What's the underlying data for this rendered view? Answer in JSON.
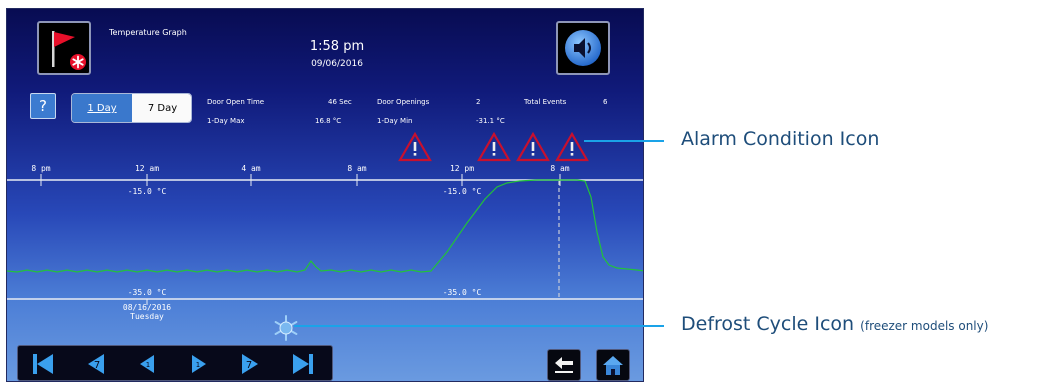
{
  "screen": {
    "title": "Temperature Graph",
    "time": "1:58 pm",
    "date": "09/06/2016"
  },
  "help_label": "?",
  "tabs": [
    {
      "label": "1 Day",
      "selected": true
    },
    {
      "label": "7 Day",
      "selected": false
    }
  ],
  "stats": {
    "door_open_time_label": "Door Open Time",
    "door_open_time_value": "46 Sec",
    "door_openings_label": "Door Openings",
    "door_openings_value": "2",
    "total_events_label": "Total Events",
    "total_events_value": "6",
    "max_label": "1-Day Max",
    "max_value": "16.8 °C",
    "min_label": "1-Day Min",
    "min_value": "-31.1 °C"
  },
  "graph": {
    "time_ticks": [
      "8 pm",
      "12 am",
      "4 am",
      "8 am",
      "12 pm",
      "8 am"
    ],
    "upper_limit_label": "-15.0 °C",
    "lower_limit_label": "-35.0 °C",
    "start_date": "08/16/2016",
    "start_weekday": "Tuesday",
    "line_color": "#22c23a"
  },
  "callouts": {
    "alarm": "Alarm Condition Icon",
    "defrost": "Defrost Cycle Icon",
    "defrost_note": "(freezer models only)"
  },
  "colors": {
    "accent": "#1aa3e8",
    "button_blue": "#3a78cc",
    "alarm_red": "#c8102e"
  },
  "icons": [
    "alarm-flag-icon",
    "sound-icon",
    "alarm-condition-icon",
    "defrost-icon",
    "first-icon",
    "back-fast-icon",
    "back-icon",
    "forward-icon",
    "forward-fast-icon",
    "last-icon",
    "return-icon",
    "home-icon"
  ]
}
